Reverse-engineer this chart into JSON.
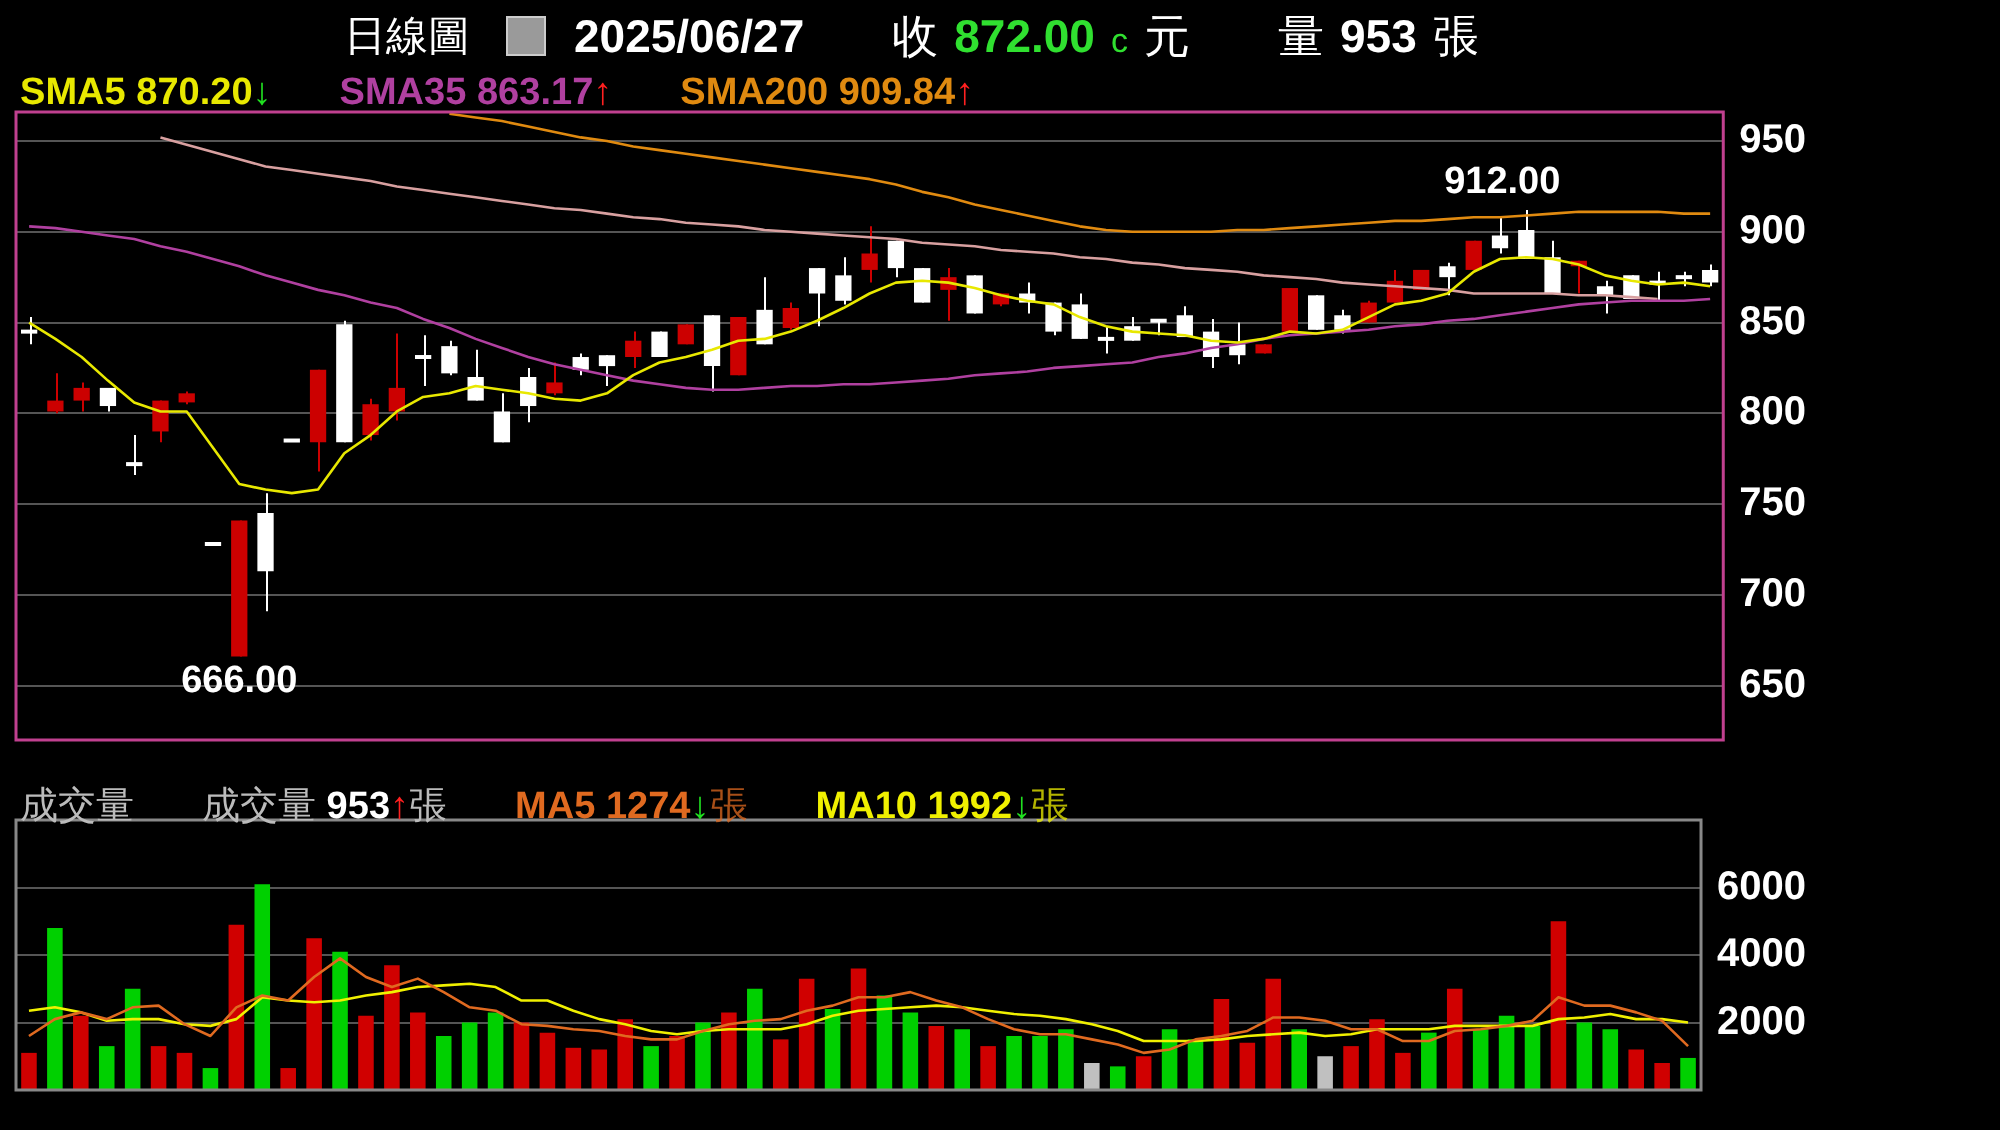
{
  "chart_data": [
    {
      "type": "candlestick",
      "title": "日線圖",
      "annotations": [
        "2025/06/27",
        "收 872.00 c 元",
        "量 953 張",
        {
          "text": "912.00",
          "y": 912
        },
        {
          "text": "666.00",
          "y": 666
        }
      ],
      "categories": [
        null,
        null,
        null,
        null,
        null,
        null,
        null,
        null,
        null,
        null,
        null,
        null,
        null,
        null,
        null,
        null,
        null,
        null,
        null,
        null,
        null,
        null,
        null,
        null,
        null,
        null,
        null,
        null,
        null,
        null,
        null,
        null,
        null,
        null,
        null,
        null,
        null,
        null,
        null,
        null,
        null,
        null,
        null,
        null,
        null,
        null,
        null,
        null,
        null,
        null,
        null,
        null,
        null,
        null,
        null,
        null,
        null,
        null,
        null,
        null,
        null,
        null,
        null,
        null,
        null
      ],
      "ohlc": [
        [
          845,
          853,
          838,
          845
        ],
        [
          801,
          822,
          800,
          807
        ],
        [
          807,
          817,
          801,
          814
        ],
        [
          814,
          814,
          801,
          804
        ],
        [
          772,
          788,
          766,
          772
        ],
        [
          790,
          807,
          784,
          807
        ],
        [
          806,
          812,
          805,
          811
        ],
        [
          728,
          728,
          728,
          728
        ],
        [
          666,
          741,
          666,
          741
        ],
        [
          745,
          756,
          691,
          713
        ],
        [
          785,
          785,
          785,
          785
        ],
        [
          784,
          824,
          768,
          824
        ],
        [
          849,
          851,
          784,
          784
        ],
        [
          788,
          808,
          785,
          805
        ],
        [
          801,
          844,
          796,
          814
        ],
        [
          831,
          843,
          815,
          831
        ],
        [
          837,
          840,
          821,
          822
        ],
        [
          820,
          835,
          807,
          807
        ],
        [
          801,
          811,
          784,
          784
        ],
        [
          820,
          825,
          795,
          804
        ],
        [
          811,
          828,
          810,
          817
        ],
        [
          831,
          833,
          821,
          824
        ],
        [
          832,
          832,
          815,
          826
        ],
        [
          831,
          845,
          825,
          840
        ],
        [
          845,
          845,
          831,
          831
        ],
        [
          838,
          849,
          838,
          849
        ],
        [
          854,
          854,
          812,
          826
        ],
        [
          821,
          853,
          821,
          853
        ],
        [
          857,
          875,
          838,
          838
        ],
        [
          847,
          861,
          846,
          858
        ],
        [
          880,
          880,
          848,
          866
        ],
        [
          876,
          886,
          860,
          862
        ],
        [
          879,
          903,
          872,
          888
        ],
        [
          895,
          895,
          875,
          880
        ],
        [
          880,
          880,
          861,
          861
        ],
        [
          868,
          880,
          851,
          875
        ],
        [
          876,
          876,
          855,
          855
        ],
        [
          860,
          866,
          859,
          866
        ],
        [
          866,
          872,
          855,
          861
        ],
        [
          861,
          861,
          843,
          845
        ],
        [
          860,
          866,
          841,
          841
        ],
        [
          841,
          848,
          833,
          841
        ],
        [
          848,
          853,
          840,
          840
        ],
        [
          851,
          851,
          843,
          851
        ],
        [
          854,
          859,
          842,
          842
        ],
        [
          845,
          852,
          825,
          831
        ],
        [
          838,
          850,
          827,
          832
        ],
        [
          833,
          838,
          833,
          838
        ],
        [
          845,
          869,
          845,
          869
        ],
        [
          865,
          865,
          846,
          846
        ],
        [
          854,
          857,
          844,
          846
        ],
        [
          850,
          862,
          850,
          861
        ],
        [
          861,
          879,
          861,
          873
        ],
        [
          868,
          879,
          868,
          879
        ],
        [
          881,
          883,
          865,
          875
        ],
        [
          879,
          895,
          879,
          895
        ],
        [
          898,
          908,
          888,
          891
        ],
        [
          901,
          912,
          885,
          885
        ],
        [
          886,
          895,
          866,
          866
        ],
        [
          881,
          884,
          866,
          884
        ],
        [
          870,
          873,
          855,
          865
        ],
        [
          876,
          876,
          863,
          863
        ],
        [
          872,
          878,
          862,
          872
        ],
        [
          875,
          878,
          870,
          875
        ],
        [
          879,
          882,
          870,
          872
        ]
      ],
      "colors": [
        "#ffffff",
        "#cc0000",
        "#cc0000",
        "#ffffff",
        "#ffffff",
        "#cc0000",
        "#cc0000",
        "#ffffff",
        "#cc0000",
        "#ffffff",
        "#ffffff",
        "#cc0000",
        "#ffffff",
        "#cc0000",
        "#cc0000",
        "#ffffff",
        "#ffffff",
        "#ffffff",
        "#ffffff",
        "#ffffff",
        "#cc0000",
        "#ffffff",
        "#ffffff",
        "#cc0000",
        "#ffffff",
        "#cc0000",
        "#ffffff",
        "#cc0000",
        "#ffffff",
        "#cc0000",
        "#ffffff",
        "#ffffff",
        "#cc0000",
        "#ffffff",
        "#ffffff",
        "#cc0000",
        "#ffffff",
        "#cc0000",
        "#ffffff",
        "#ffffff",
        "#ffffff",
        "#ffffff",
        "#ffffff",
        "#ffffff",
        "#ffffff",
        "#ffffff",
        "#ffffff",
        "#cc0000",
        "#cc0000",
        "#ffffff",
        "#ffffff",
        "#cc0000",
        "#cc0000",
        "#cc0000",
        "#ffffff",
        "#cc0000",
        "#ffffff",
        "#ffffff",
        "#ffffff",
        "#cc0000",
        "#ffffff",
        "#ffffff",
        "#ffffff",
        "#ffffff",
        "#ffffff"
      ],
      "series": [
        {
          "type": "line",
          "name": "SMA5 870.20↓",
          "color": "#e8e800",
          "values": [
            850,
            841,
            831,
            818,
            806,
            801,
            801,
            781,
            761,
            758,
            756,
            758,
            778,
            788,
            801,
            809,
            811,
            815,
            813,
            811,
            808,
            807,
            811,
            821,
            828,
            831,
            835,
            840,
            841,
            845,
            851,
            858,
            866,
            872,
            873,
            872,
            869,
            865,
            862,
            860,
            853,
            848,
            845,
            844,
            843,
            840,
            839,
            841,
            845,
            844,
            846,
            853,
            860,
            862,
            866,
            878,
            885,
            886,
            885,
            882,
            876,
            873,
            871,
            872,
            870
          ]
        },
        {
          "type": "line",
          "name": "SMA35 863.17↑",
          "color": "#b040a0",
          "values": [
            903,
            902,
            900,
            898,
            896,
            892,
            889,
            885,
            881,
            876,
            872,
            868,
            865,
            861,
            858,
            852,
            847,
            841,
            836,
            831,
            827,
            824,
            821,
            818,
            816,
            814,
            813,
            813,
            814,
            815,
            815,
            816,
            816,
            817,
            818,
            819,
            821,
            822,
            823,
            825,
            826,
            827,
            828,
            831,
            833,
            836,
            838,
            841,
            843,
            844,
            845,
            846,
            848,
            849,
            851,
            852,
            854,
            856,
            858,
            860,
            861,
            862,
            862,
            862,
            863
          ]
        },
        {
          "type": "line",
          "name": "SMA200 909.84↑",
          "color": "#e08a10",
          "values": [
            null,
            null,
            null,
            null,
            null,
            null,
            null,
            null,
            null,
            null,
            null,
            null,
            null,
            null,
            null,
            null,
            965,
            963,
            961,
            958,
            955,
            952,
            950,
            947,
            945,
            943,
            941,
            939,
            937,
            935,
            933,
            931,
            929,
            926,
            922,
            919,
            915,
            912,
            909,
            906,
            903,
            901,
            900,
            900,
            900,
            900,
            901,
            901,
            902,
            903,
            904,
            905,
            906,
            906,
            907,
            908,
            908,
            909,
            910,
            911,
            911,
            911,
            911,
            910,
            910
          ]
        },
        {
          "type": "line",
          "color": "#d8a0a0",
          "values": [
            null,
            null,
            null,
            null,
            null,
            952,
            948,
            944,
            940,
            936,
            934,
            932,
            930,
            928,
            925,
            923,
            921,
            919,
            917,
            915,
            913,
            912,
            910,
            908,
            907,
            905,
            904,
            903,
            901,
            900,
            899,
            898,
            897,
            896,
            894,
            893,
            892,
            890,
            889,
            888,
            886,
            885,
            883,
            882,
            880,
            879,
            878,
            876,
            875,
            874,
            872,
            871,
            870,
            869,
            868,
            866,
            866,
            866,
            866,
            865,
            865,
            864,
            863,
            null,
            null
          ]
        }
      ],
      "ylim": [
        620,
        966
      ],
      "yticks": [
        650,
        700,
        750,
        800,
        850,
        900,
        950
      ],
      "grid": "y"
    },
    {
      "type": "bar",
      "title": "成交量",
      "categories": [
        null,
        null,
        null,
        null,
        null,
        null,
        null,
        null,
        null,
        null,
        null,
        null,
        null,
        null,
        null,
        null,
        null,
        null,
        null,
        null,
        null,
        null,
        null,
        null,
        null,
        null,
        null,
        null,
        null,
        null,
        null,
        null,
        null,
        null,
        null,
        null,
        null,
        null,
        null,
        null,
        null,
        null,
        null,
        null,
        null,
        null,
        null,
        null,
        null,
        null,
        null,
        null,
        null,
        null,
        null,
        null,
        null,
        null,
        null,
        null,
        null,
        null,
        null,
        null,
        null
      ],
      "series": [
        {
          "name": "成交量 953↑張",
          "colors": [
            "#d00000",
            "#00d000",
            "#d00000",
            "#00d000",
            "#00d000",
            "#d00000",
            "#d00000",
            "#00d000",
            "#d00000",
            "#00d000",
            "#d00000",
            "#d00000",
            "#00d000",
            "#d00000",
            "#d00000",
            "#d00000",
            "#00d000",
            "#00d000",
            "#00d000",
            "#d00000",
            "#d00000",
            "#d00000",
            "#d00000",
            "#d00000",
            "#00d000",
            "#d00000",
            "#00d000",
            "#d00000",
            "#00d000",
            "#d00000",
            "#d00000",
            "#00d000",
            "#d00000",
            "#00d000",
            "#00d000",
            "#d00000",
            "#00d000",
            "#d00000",
            "#00d000",
            "#00d000",
            "#00d000",
            "#c0c0c0",
            "#00d000",
            "#d00000",
            "#00d000",
            "#00d000",
            "#d00000",
            "#d00000",
            "#d00000",
            "#00d000",
            "#c0c0c0",
            "#d00000",
            "#d00000",
            "#d00000",
            "#00d000",
            "#d00000",
            "#00d000",
            "#00d000",
            "#00d000",
            "#d00000",
            "#00d000",
            "#00d000",
            "#d00000",
            "#d00000",
            "#00d000"
          ],
          "values": [
            1100,
            4800,
            2200,
            1300,
            3000,
            1300,
            1100,
            650,
            4900,
            6100,
            650,
            4500,
            4100,
            2200,
            3700,
            2300,
            1600,
            2000,
            2300,
            2000,
            1700,
            1250,
            1200,
            2100,
            1300,
            1600,
            2000,
            2300,
            3000,
            1500,
            3300,
            2400,
            3600,
            2800,
            2300,
            1900,
            1800,
            1300,
            1600,
            1600,
            1800,
            800,
            700,
            1000,
            1800,
            1500,
            2700,
            1400,
            3300,
            1800,
            1000,
            1300,
            2100,
            1100,
            1700,
            3000,
            1800,
            2200,
            1900,
            5000,
            2000,
            1800,
            1200,
            800,
            950
          ]
        },
        {
          "type": "line",
          "name": "MA5 1274↓張",
          "color": "#e06a20",
          "values": [
            1600,
            2100,
            2300,
            2100,
            2450,
            2500,
            1950,
            1600,
            2450,
            2800,
            2650,
            3350,
            3900,
            3350,
            3050,
            3300,
            2900,
            2450,
            2350,
            1950,
            1900,
            1800,
            1750,
            1600,
            1500,
            1500,
            1750,
            1950,
            2050,
            2100,
            2350,
            2500,
            2750,
            2750,
            2900,
            2650,
            2450,
            2100,
            1800,
            1650,
            1650,
            1500,
            1350,
            1100,
            1200,
            1500,
            1600,
            1750,
            2150,
            2150,
            2050,
            1800,
            1800,
            1450,
            1450,
            1750,
            1800,
            1900,
            2050,
            2750,
            2500,
            2500,
            2300,
            2050,
            1300
          ]
        },
        {
          "type": "line",
          "name": "MA10 1992↓張",
          "color": "#f0f000",
          "values": [
            2350,
            2450,
            2300,
            2050,
            2100,
            2100,
            1950,
            1900,
            2100,
            2750,
            2650,
            2600,
            2650,
            2800,
            2900,
            3050,
            3100,
            3150,
            3050,
            2650,
            2650,
            2350,
            2100,
            1950,
            1750,
            1650,
            1750,
            1800,
            1800,
            1800,
            1950,
            2200,
            2350,
            2400,
            2450,
            2500,
            2450,
            2350,
            2250,
            2200,
            2100,
            1950,
            1750,
            1450,
            1450,
            1450,
            1500,
            1600,
            1650,
            1700,
            1600,
            1650,
            1800,
            1800,
            1800,
            1900,
            1900,
            1900,
            1900,
            2100,
            2150,
            2250,
            2100,
            2100,
            2000
          ]
        }
      ],
      "ylim": [
        0,
        8000
      ],
      "yticks": [
        2000,
        4000,
        6000
      ],
      "grid": "y"
    }
  ]
}
